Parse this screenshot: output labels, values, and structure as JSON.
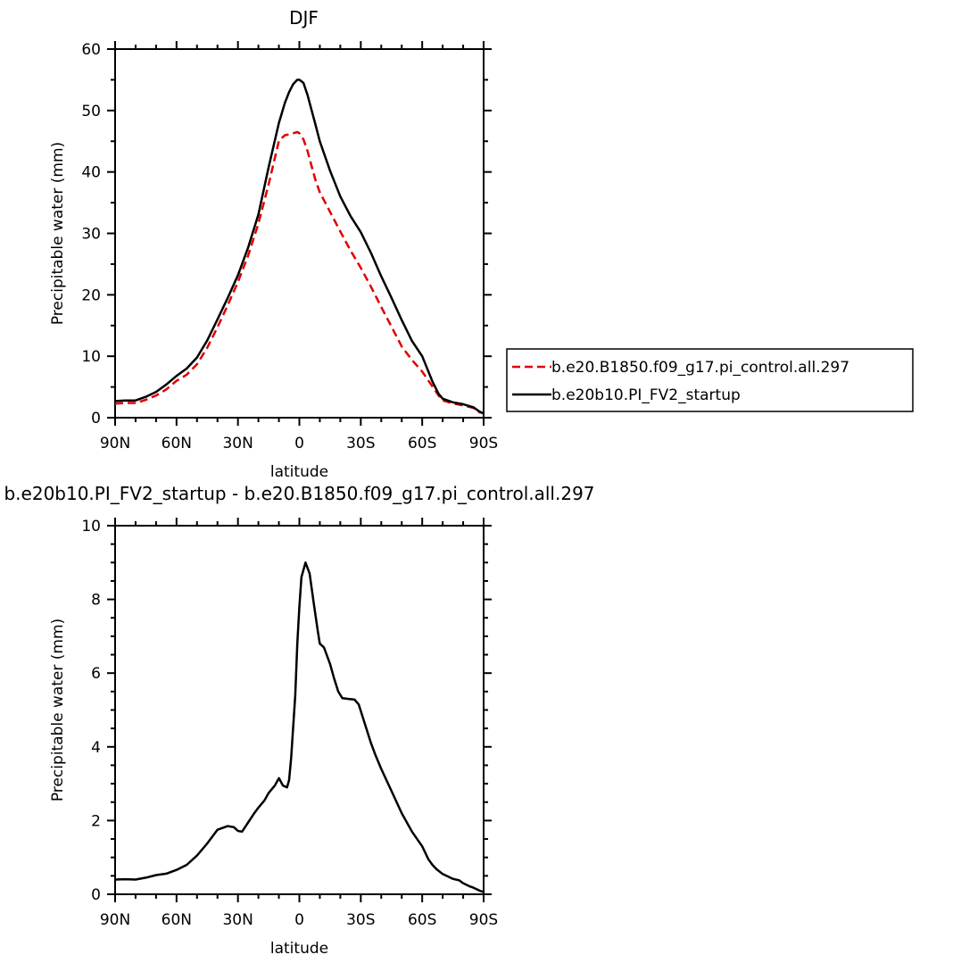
{
  "chart_data": [
    {
      "type": "line",
      "title": "DJF",
      "xlabel": "latitude",
      "ylabel": "Precipitable water (mm)",
      "xlim": [
        90,
        -90
      ],
      "ylim": [
        0,
        60
      ],
      "x_ticks": [
        90,
        60,
        30,
        0,
        -30,
        -60,
        -90
      ],
      "x_tick_labels": [
        "90N",
        "60N",
        "30N",
        "0",
        "30S",
        "60S",
        "90S"
      ],
      "y_ticks": [
        0,
        10,
        20,
        30,
        40,
        50,
        60
      ],
      "y_tick_labels": [
        "0",
        "10",
        "20",
        "30",
        "40",
        "50",
        "60"
      ],
      "legend_position": "right",
      "series": [
        {
          "name": "b.e20.B1850.f09_g17.pi_control.all.297",
          "color": "#e00000",
          "dash": "dashed",
          "x": [
            90,
            85,
            80,
            75,
            70,
            65,
            60,
            55,
            50,
            45,
            40,
            35,
            30,
            25,
            20,
            15,
            10,
            7,
            5,
            3,
            1,
            0,
            -2,
            -4,
            -6,
            -8,
            -10,
            -15,
            -20,
            -25,
            -30,
            -35,
            -40,
            -45,
            -50,
            -55,
            -60,
            -65,
            -68,
            -70,
            -75,
            -80,
            -85,
            -88,
            -90
          ],
          "values": [
            2.3,
            2.4,
            2.4,
            2.9,
            3.6,
            4.6,
            6.0,
            7.0,
            8.7,
            11.4,
            14.7,
            18.3,
            22.1,
            26.4,
            31.6,
            38.0,
            45.1,
            46.0,
            46.1,
            46.3,
            46.5,
            46.3,
            45.3,
            43.4,
            40.9,
            38.5,
            36.7,
            33.5,
            30.3,
            27.2,
            24.4,
            21.3,
            18.0,
            14.8,
            11.6,
            9.4,
            7.5,
            5.1,
            3.6,
            2.8,
            2.3,
            2.0,
            1.6,
            0.9,
            0.7
          ]
        },
        {
          "name": "b.e20b10.PI_FV2_startup",
          "color": "#000000",
          "dash": "solid",
          "x": [
            90,
            85,
            80,
            75,
            70,
            65,
            60,
            55,
            50,
            45,
            40,
            35,
            30,
            25,
            20,
            15,
            10,
            7,
            5,
            3,
            1,
            0,
            -2,
            -4,
            -6,
            -8,
            -10,
            -15,
            -20,
            -25,
            -30,
            -35,
            -40,
            -45,
            -50,
            -55,
            -60,
            -65,
            -68,
            -70,
            -75,
            -80,
            -85,
            -88,
            -90
          ],
          "values": [
            2.7,
            2.8,
            2.8,
            3.4,
            4.2,
            5.4,
            6.8,
            8.0,
            9.8,
            12.6,
            16.0,
            19.5,
            23.2,
            27.7,
            33.1,
            40.8,
            48.0,
            51.3,
            53.0,
            54.3,
            55.0,
            55.0,
            54.5,
            52.5,
            50.0,
            47.5,
            45.0,
            40.2,
            36.0,
            32.8,
            30.2,
            26.8,
            23.0,
            19.5,
            15.9,
            12.5,
            10.0,
            5.9,
            3.9,
            3.1,
            2.5,
            2.2,
            1.7,
            1.0,
            0.7
          ]
        }
      ]
    },
    {
      "type": "line",
      "title": "b.e20b10.PI_FV2_startup - b.e20.B1850.f09_g17.pi_control.all.297",
      "xlabel": "latitude",
      "ylabel": "Precipitable water (mm)",
      "xlim": [
        90,
        -90
      ],
      "ylim": [
        0,
        10
      ],
      "x_ticks": [
        90,
        60,
        30,
        0,
        -30,
        -60,
        -90
      ],
      "x_tick_labels": [
        "90N",
        "60N",
        "30N",
        "0",
        "30S",
        "60S",
        "90S"
      ],
      "y_ticks": [
        0,
        2,
        4,
        6,
        8,
        10
      ],
      "y_tick_labels": [
        "0",
        "2",
        "4",
        "6",
        "8",
        "10"
      ],
      "series": [
        {
          "color": "#000000",
          "dash": "solid",
          "x": [
            90,
            85,
            80,
            75,
            70,
            65,
            60,
            55,
            50,
            45,
            42,
            40,
            35,
            32,
            30,
            28,
            25,
            22,
            20,
            17,
            15,
            12,
            10,
            8,
            6,
            5,
            4,
            2,
            1,
            0,
            -1,
            -3,
            -5,
            -7,
            -9,
            -10,
            -12,
            -13,
            -15,
            -17,
            -19,
            -21,
            -24,
            -27,
            -29,
            -31,
            -33,
            -35,
            -37,
            -40,
            -45,
            -50,
            -55,
            -60,
            -63,
            -65,
            -67,
            -70,
            -75,
            -78,
            -80,
            -83,
            -85,
            -88,
            -90
          ],
          "values": [
            0.4,
            0.41,
            0.4,
            0.45,
            0.52,
            0.56,
            0.66,
            0.8,
            1.05,
            1.38,
            1.6,
            1.75,
            1.85,
            1.82,
            1.72,
            1.7,
            1.95,
            2.2,
            2.35,
            2.55,
            2.75,
            2.95,
            3.15,
            2.95,
            2.9,
            3.1,
            3.7,
            5.4,
            6.8,
            7.8,
            8.6,
            9.0,
            8.7,
            7.9,
            7.15,
            6.8,
            6.7,
            6.55,
            6.25,
            5.85,
            5.5,
            5.32,
            5.3,
            5.28,
            5.15,
            4.8,
            4.45,
            4.1,
            3.8,
            3.4,
            2.8,
            2.2,
            1.7,
            1.3,
            0.95,
            0.8,
            0.68,
            0.55,
            0.42,
            0.38,
            0.3,
            0.22,
            0.18,
            0.1,
            0.06
          ]
        }
      ]
    }
  ]
}
